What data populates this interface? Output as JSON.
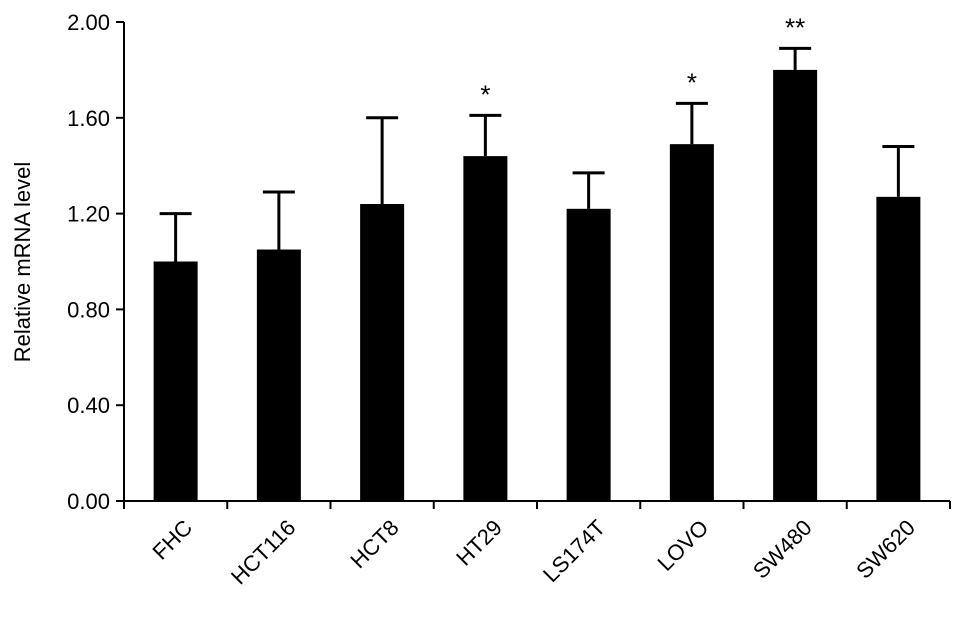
{
  "chart_data": {
    "type": "bar",
    "title": "",
    "xlabel": "",
    "ylabel": "Relative mRNA level",
    "ylim": [
      0,
      2.0
    ],
    "yticks": [
      "0.00",
      "0.40",
      "0.80",
      "1.20",
      "1.60",
      "2.00"
    ],
    "categories": [
      "FHC",
      "HCT116",
      "HCT8",
      "HT29",
      "LS174T",
      "LOVO",
      "SW480",
      "SW620"
    ],
    "values": [
      1.0,
      1.05,
      1.24,
      1.44,
      1.22,
      1.49,
      1.8,
      1.27
    ],
    "errors": [
      0.2,
      0.24,
      0.36,
      0.17,
      0.15,
      0.17,
      0.09,
      0.21
    ],
    "significance": [
      "",
      "",
      "",
      "*",
      "",
      "*",
      "**",
      ""
    ],
    "bar_color": "#000000"
  }
}
